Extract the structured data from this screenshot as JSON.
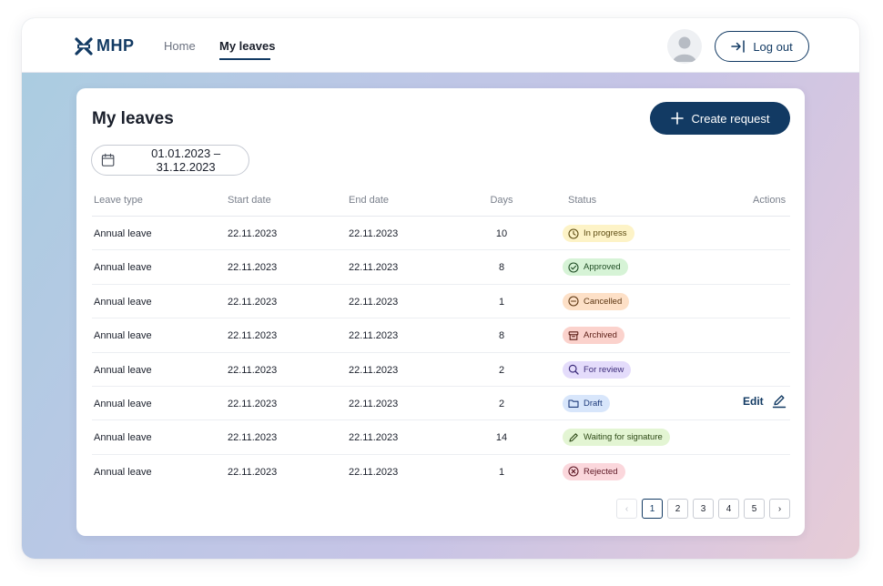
{
  "brand": {
    "name": "MHP"
  },
  "nav": {
    "home": "Home",
    "my_leaves": "My leaves",
    "logout": "Log out"
  },
  "page": {
    "title": "My leaves",
    "create_label": "Create request",
    "date_range": "01.01.2023 – 31.12.2023"
  },
  "table": {
    "headers": {
      "type": "Leave type",
      "start": "Start date",
      "end": "End date",
      "days": "Days",
      "status": "Status",
      "actions": "Actions"
    },
    "rows": [
      {
        "type": "Annual leave",
        "start": "22.11.2023",
        "end": "22.11.2023",
        "days": "10",
        "status": "In progress",
        "action": ""
      },
      {
        "type": "Annual leave",
        "start": "22.11.2023",
        "end": "22.11.2023",
        "days": "8",
        "status": "Approved",
        "action": ""
      },
      {
        "type": "Annual leave",
        "start": "22.11.2023",
        "end": "22.11.2023",
        "days": "1",
        "status": "Cancelled",
        "action": ""
      },
      {
        "type": "Annual leave",
        "start": "22.11.2023",
        "end": "22.11.2023",
        "days": "8",
        "status": "Archived",
        "action": ""
      },
      {
        "type": "Annual leave",
        "start": "22.11.2023",
        "end": "22.11.2023",
        "days": "2",
        "status": "For review",
        "action": ""
      },
      {
        "type": "Annual leave",
        "start": "22.11.2023",
        "end": "22.11.2023",
        "days": "2",
        "status": "Draft",
        "action": "Edit"
      },
      {
        "type": "Annual leave",
        "start": "22.11.2023",
        "end": "22.11.2023",
        "days": "14",
        "status": "Waiting for signature",
        "action": ""
      },
      {
        "type": "Annual leave",
        "start": "22.11.2023",
        "end": "22.11.2023",
        "days": "1",
        "status": "Rejected",
        "action": ""
      }
    ]
  },
  "status_styles": {
    "In progress": {
      "bg": "#fdf3c7",
      "fg": "#5b4a10",
      "icon": "clock-icon"
    },
    "Approved": {
      "bg": "#d6f3d6",
      "fg": "#1f4d24",
      "icon": "check-circle-icon"
    },
    "Cancelled": {
      "bg": "#fde0c7",
      "fg": "#5c3612",
      "icon": "minus-circle-icon"
    },
    "Archived": {
      "bg": "#fbd2cc",
      "fg": "#5c1e16",
      "icon": "archive-icon"
    },
    "For review": {
      "bg": "#e4dcfb",
      "fg": "#3b2b7a",
      "icon": "search-icon"
    },
    "Draft": {
      "bg": "#d8e6fb",
      "fg": "#1d3a7a",
      "icon": "folder-icon"
    },
    "Waiting for signature": {
      "bg": "#e3f5d3",
      "fg": "#2e4a17",
      "icon": "pen-icon"
    },
    "Rejected": {
      "bg": "#fbd7dc",
      "fg": "#5c1724",
      "icon": "x-circle-icon"
    }
  },
  "pagination": {
    "pages": [
      "1",
      "2",
      "3",
      "4",
      "5"
    ],
    "current": "1",
    "prev": "‹",
    "next": "›"
  },
  "colors": {
    "primary": "#123a63"
  }
}
